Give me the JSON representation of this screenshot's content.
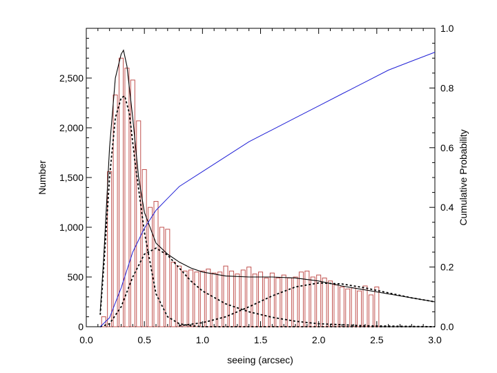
{
  "chart_data": {
    "type": "bar",
    "xlabel": "seeing (arcsec)",
    "ylabel": "Number",
    "y2label": "Cumulative Probability",
    "xlim": [
      0.0,
      3.0
    ],
    "ylim": [
      0,
      3000
    ],
    "y2lim": [
      0.0,
      1.0
    ],
    "x_ticks": [
      "0.0",
      "0.5",
      "1.0",
      "1.5",
      "2.0",
      "2.5",
      "3.0"
    ],
    "y_ticks": [
      "0",
      "500",
      "1,000",
      "1,500",
      "2,000",
      "2,500"
    ],
    "y2_ticks": [
      "0.0",
      "0.2",
      "0.4",
      "0.6",
      "0.8",
      "1.0"
    ],
    "grid": false,
    "colors": {
      "histogram": "#c0504d",
      "fit": "#000000",
      "components": "#000000",
      "cumulative": "#1f1fd6"
    },
    "histogram": {
      "bin_width": 0.05,
      "bin_start": 0.125,
      "values": [
        100,
        1560,
        2330,
        2700,
        2600,
        2480,
        2070,
        1580,
        1200,
        1260,
        1000,
        980,
        650,
        610,
        560,
        570,
        550,
        560,
        580,
        540,
        550,
        610,
        560,
        530,
        570,
        600,
        530,
        550,
        490,
        540,
        490,
        520,
        490,
        500,
        550,
        560,
        500,
        520,
        490,
        460,
        420,
        400,
        380,
        390,
        360,
        410,
        320,
        400
      ]
    },
    "fit_total": {
      "x": [
        0.12,
        0.15,
        0.2,
        0.25,
        0.3,
        0.32,
        0.35,
        0.4,
        0.45,
        0.5,
        0.6,
        0.7,
        0.8,
        0.9,
        1.0,
        1.2,
        1.4,
        1.6,
        1.8,
        2.0,
        2.2,
        2.4,
        2.6,
        2.8,
        3.0
      ],
      "y": [
        150,
        700,
        1800,
        2500,
        2740,
        2780,
        2620,
        2100,
        1500,
        1150,
        840,
        730,
        650,
        590,
        550,
        510,
        500,
        500,
        490,
        460,
        410,
        370,
        330,
        290,
        250
      ]
    },
    "components": [
      {
        "x": [
          0.12,
          0.15,
          0.2,
          0.25,
          0.3,
          0.33,
          0.37,
          0.42,
          0.5,
          0.6,
          0.7,
          0.8,
          0.9,
          1.0,
          1.5,
          3.0
        ],
        "y": [
          120,
          600,
          1500,
          2100,
          2300,
          2320,
          2150,
          1650,
          950,
          330,
          100,
          30,
          10,
          0,
          0,
          0
        ]
      },
      {
        "x": [
          0.12,
          0.2,
          0.3,
          0.4,
          0.5,
          0.6,
          0.7,
          0.8,
          0.9,
          1.0,
          1.2,
          1.4,
          1.6,
          1.8,
          2.0,
          2.4,
          3.0
        ],
        "y": [
          0,
          30,
          200,
          500,
          730,
          790,
          720,
          590,
          460,
          360,
          230,
          150,
          95,
          55,
          30,
          10,
          0
        ]
      },
      {
        "x": [
          0.8,
          1.0,
          1.2,
          1.4,
          1.6,
          1.8,
          2.0,
          2.2,
          2.4,
          2.6,
          2.8,
          3.0
        ],
        "y": [
          10,
          40,
          100,
          200,
          310,
          400,
          440,
          430,
          390,
          340,
          290,
          250
        ]
      }
    ],
    "cumulative": {
      "x": [
        0.12,
        0.2,
        0.3,
        0.4,
        0.5,
        0.6,
        0.7,
        0.8,
        1.0,
        1.2,
        1.4,
        1.6,
        1.8,
        2.0,
        2.2,
        2.4,
        2.6,
        2.8,
        3.0
      ],
      "y": [
        0.0,
        0.03,
        0.13,
        0.25,
        0.33,
        0.39,
        0.43,
        0.47,
        0.52,
        0.57,
        0.62,
        0.66,
        0.7,
        0.74,
        0.78,
        0.82,
        0.86,
        0.89,
        0.92
      ]
    }
  }
}
